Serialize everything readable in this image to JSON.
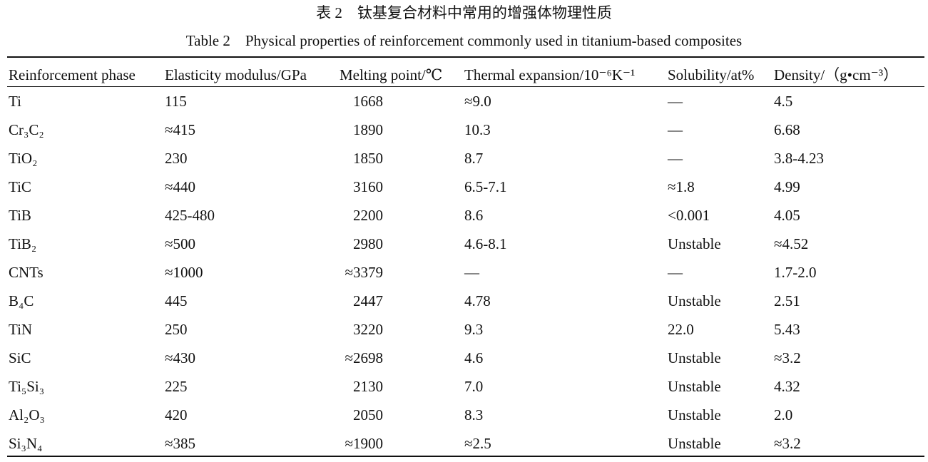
{
  "caption": {
    "title_zh": "表 2　钛基复合材料中常用的增强体物理性质",
    "title_en": "Table 2　Physical properties of reinforcement commonly used in titanium-based composites"
  },
  "table": {
    "header": [
      "Reinforcement phase",
      "Elasticity modulus/GPa",
      "Melting point/℃",
      "Thermal expansion/10⁻⁶K⁻¹",
      "Solubility/at%",
      "Density/（g•cm⁻³）"
    ],
    "rows": [
      [
        "Ti",
        "115",
        "1668",
        "≈9.0",
        "—",
        "4.5"
      ],
      [
        "Cr₃C₂",
        "≈415",
        "1890",
        "10.3",
        "—",
        "6.68"
      ],
      [
        "TiO₂",
        "230",
        "1850",
        "8.7",
        "—",
        "3.8-4.23"
      ],
      [
        "TiC",
        "≈440",
        "3160",
        "6.5-7.1",
        "≈1.8",
        "4.99"
      ],
      [
        "TiB",
        "425-480",
        "2200",
        "8.6",
        "<0.001",
        "4.05"
      ],
      [
        "TiB₂",
        "≈500",
        "2980",
        "4.6-8.1",
        "Unstable",
        "≈4.52"
      ],
      [
        "CNTs",
        "≈1000",
        "≈3379",
        "—",
        "—",
        "1.7-2.0"
      ],
      [
        "B₄C",
        "445",
        "2447",
        "4.78",
        "Unstable",
        "2.51"
      ],
      [
        "TiN",
        "250",
        "3220",
        "9.3",
        "22.0",
        "5.43"
      ],
      [
        "SiC",
        "≈430",
        "≈2698",
        "4.6",
        "Unstable",
        "≈3.2"
      ],
      [
        "Ti₅Si₃",
        "225",
        "2130",
        "7.0",
        "Unstable",
        "4.32"
      ],
      [
        "Al₂O₃",
        "420",
        "2050",
        "8.3",
        "Unstable",
        "2.0"
      ],
      [
        "Si₃N₄",
        "≈385",
        "≈1900",
        "≈2.5",
        "Unstable",
        "≈3.2"
      ]
    ]
  }
}
